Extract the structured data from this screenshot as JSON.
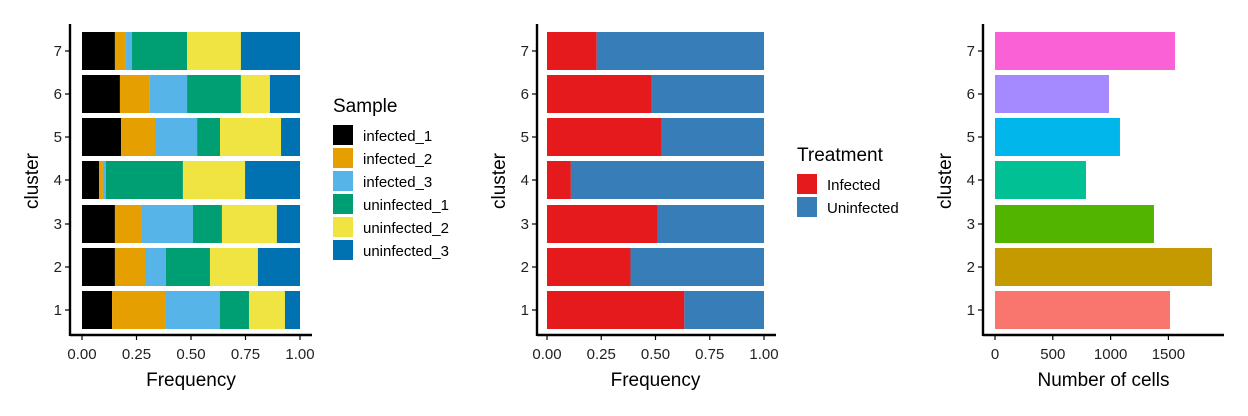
{
  "chart_data": [
    {
      "type": "bar",
      "stacked": true,
      "orientation": "horizontal",
      "categories": [
        "1",
        "2",
        "3",
        "4",
        "5",
        "6",
        "7"
      ],
      "xlabel": "Frequency",
      "ylabel": "cluster",
      "xlim": [
        0,
        1
      ],
      "xticks": [
        "0.00",
        "0.25",
        "0.50",
        "0.75",
        "1.00"
      ],
      "legend_title": "Sample",
      "legend_position": "right",
      "series": [
        {
          "name": "infected_1",
          "color": "#000000",
          "values": [
            0.138,
            0.151,
            0.151,
            0.078,
            0.179,
            0.174,
            0.151
          ]
        },
        {
          "name": "infected_2",
          "color": "#E69F00",
          "values": [
            0.243,
            0.138,
            0.12,
            0.018,
            0.156,
            0.135,
            0.048
          ]
        },
        {
          "name": "infected_3",
          "color": "#56B4E9",
          "values": [
            0.252,
            0.096,
            0.238,
            0.014,
            0.193,
            0.173,
            0.03
          ]
        },
        {
          "name": "uninfected_1",
          "color": "#009E73",
          "values": [
            0.133,
            0.202,
            0.133,
            0.353,
            0.105,
            0.247,
            0.253
          ]
        },
        {
          "name": "uninfected_2",
          "color": "#F0E442",
          "values": [
            0.165,
            0.22,
            0.252,
            0.285,
            0.28,
            0.133,
            0.247
          ]
        },
        {
          "name": "uninfected_3",
          "color": "#0072B2",
          "values": [
            0.069,
            0.193,
            0.106,
            0.252,
            0.087,
            0.138,
            0.271
          ]
        }
      ]
    },
    {
      "type": "bar",
      "stacked": true,
      "orientation": "horizontal",
      "categories": [
        "1",
        "2",
        "3",
        "4",
        "5",
        "6",
        "7"
      ],
      "xlabel": "Frequency",
      "ylabel": "cluster",
      "xlim": [
        0,
        1
      ],
      "xticks": [
        "0.00",
        "0.25",
        "0.50",
        "0.75",
        "1.00"
      ],
      "legend_title": "Treatment",
      "legend_position": "right",
      "series": [
        {
          "name": "Infected",
          "color": "#E41A1C",
          "values": [
            0.633,
            0.385,
            0.509,
            0.11,
            0.528,
            0.482,
            0.229
          ]
        },
        {
          "name": "Uninfected",
          "color": "#377EB8",
          "values": [
            0.367,
            0.615,
            0.491,
            0.89,
            0.472,
            0.518,
            0.771
          ]
        }
      ]
    },
    {
      "type": "bar",
      "orientation": "horizontal",
      "categories": [
        "1",
        "2",
        "3",
        "4",
        "5",
        "6",
        "7"
      ],
      "xlabel": "Number of cells",
      "ylabel": "cluster",
      "xlim": [
        0,
        1900
      ],
      "xticks": [
        "0",
        "500",
        "1000",
        "1500"
      ],
      "values": [
        1514,
        1877,
        1375,
        787,
        1081,
        986,
        1557
      ],
      "colors": [
        "#F8766D",
        "#C49A00",
        "#53B400",
        "#00C094",
        "#00B6EB",
        "#A58AFF",
        "#FB61D7"
      ]
    }
  ]
}
